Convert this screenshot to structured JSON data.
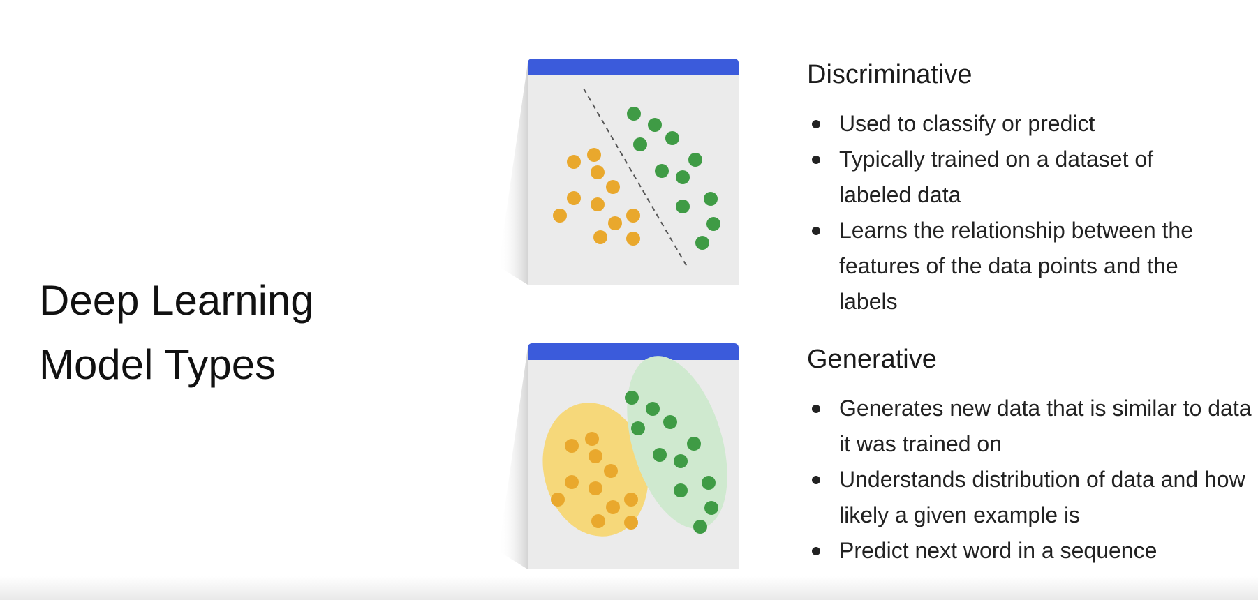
{
  "title": {
    "line1": "Deep Learning",
    "line2": "Model Types"
  },
  "sections": [
    {
      "heading": "Discriminative",
      "bullets": [
        "Used to classify or predict",
        "Typically trained on a dataset of labeled data",
        "Learns the relationship between the features of the data points and the labels"
      ]
    },
    {
      "heading": "Generative",
      "bullets": [
        "Generates new data that is similar to data it was trained on",
        "Understands distribution of data and how likely a given example is",
        "Predict next word in a sequence"
      ]
    }
  ],
  "colors": {
    "card_header": "#3b5bdb",
    "card_body": "#ebebeb",
    "orange_point": "#e9a82d",
    "green_point": "#3f9b45",
    "orange_region": "#f6d87a",
    "green_region": "#cfe9cf",
    "boundary_line": "#555555"
  },
  "icons": {
    "discriminative_card": "scatter-with-decision-boundary-icon",
    "generative_card": "scatter-with-cluster-distributions-icon"
  }
}
